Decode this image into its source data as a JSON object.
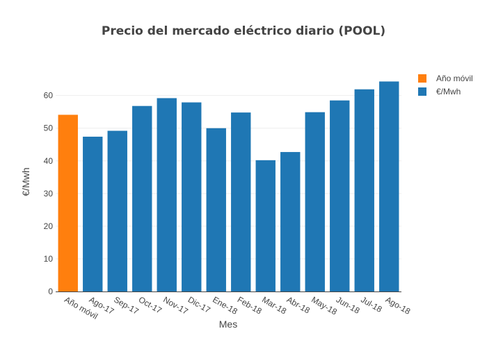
{
  "chart_data": {
    "type": "bar",
    "title": "Precio del mercado eléctrico diario (POOL)",
    "xlabel": "Mes",
    "ylabel": "€/Mwh",
    "categories": [
      "Año móvil",
      "Ago-17",
      "Sep-17",
      "Oct-17",
      "Nov-17",
      "Dic-17",
      "Ene-18",
      "Feb-18",
      "Mar-18",
      "Abr-18",
      "May-18",
      "Jun-18",
      "Jul-18",
      "Ago-18"
    ],
    "series": [
      {
        "name": "Año móvil",
        "color": "#ff7f0e",
        "values": [
          54.1,
          null,
          null,
          null,
          null,
          null,
          null,
          null,
          null,
          null,
          null,
          null,
          null,
          null
        ]
      },
      {
        "name": "€/Mwh",
        "color": "#1f77b4",
        "values": [
          null,
          47.4,
          49.2,
          56.8,
          59.2,
          57.9,
          50.0,
          54.8,
          40.2,
          42.7,
          54.9,
          58.5,
          61.9,
          64.3
        ]
      }
    ],
    "ylim": [
      0,
      68
    ],
    "yticks": [
      0,
      10,
      20,
      30,
      40,
      50,
      60
    ],
    "grid": true,
    "legend_position": "top-right"
  }
}
